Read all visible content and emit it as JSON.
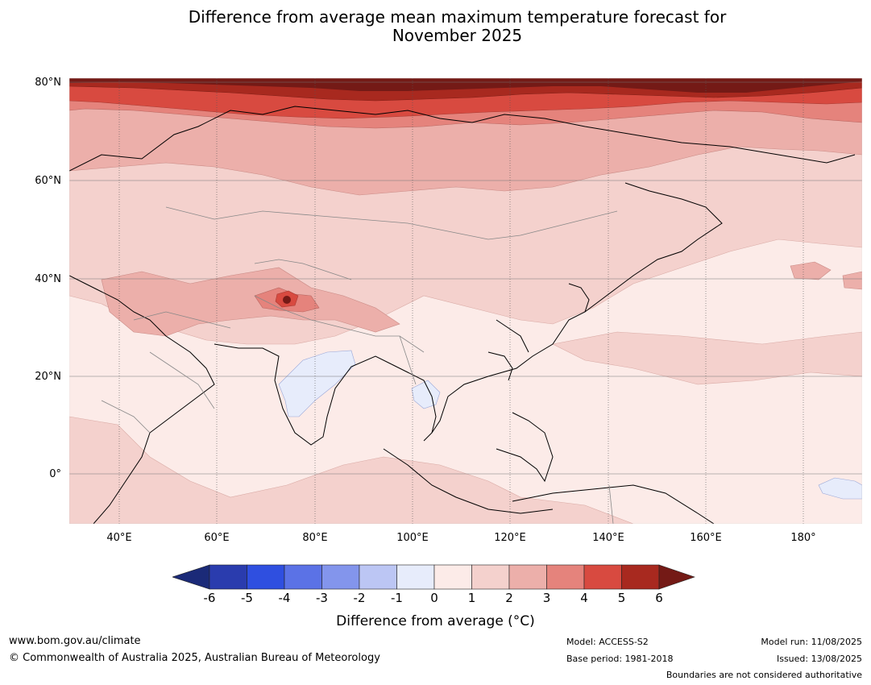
{
  "title_line1": "Difference from average mean maximum temperature forecast for",
  "title_line2": "November 2025",
  "map": {
    "lat_labels": [
      "80°N",
      "60°N",
      "40°N",
      "20°N",
      "0°"
    ],
    "lon_labels": [
      "40°E",
      "60°E",
      "80°E",
      "100°E",
      "120°E",
      "140°E",
      "160°E",
      "180°"
    ],
    "features": [
      "northern-siberia-warm-anomaly",
      "tibetan-plateau-hotspot",
      "india-cool-anomaly",
      "indochina-cool-anomaly",
      "western-pacific-cool-anomaly",
      "coastlines",
      "country-boundaries"
    ]
  },
  "colorbar": {
    "ticks": [
      "-6",
      "-5",
      "-4",
      "-3",
      "-2",
      "-1",
      "0",
      "1",
      "2",
      "3",
      "4",
      "5",
      "6"
    ],
    "label": "Difference from average (°C)",
    "colors": [
      "#1b2a78",
      "#2a3cae",
      "#2f4fe0",
      "#5b72e6",
      "#8395ec",
      "#bcc6f4",
      "#e7ecfb",
      "#fcebe8",
      "#f4d1cd",
      "#ecafaa",
      "#e5837c",
      "#d84a40",
      "#a8291f",
      "#741a16"
    ]
  },
  "footer": {
    "website": "www.bom.gov.au/climate",
    "copyright": "© Commonwealth of Australia 2025, Australian Bureau of Meteorology",
    "model": "Model: ACCESS-S2",
    "base_period": "Base period: 1981-2018",
    "model_run": "Model run: 11/08/2025",
    "issued": "Issued: 13/08/2025",
    "disclaimer": "Boundaries are not considered authoritative"
  }
}
